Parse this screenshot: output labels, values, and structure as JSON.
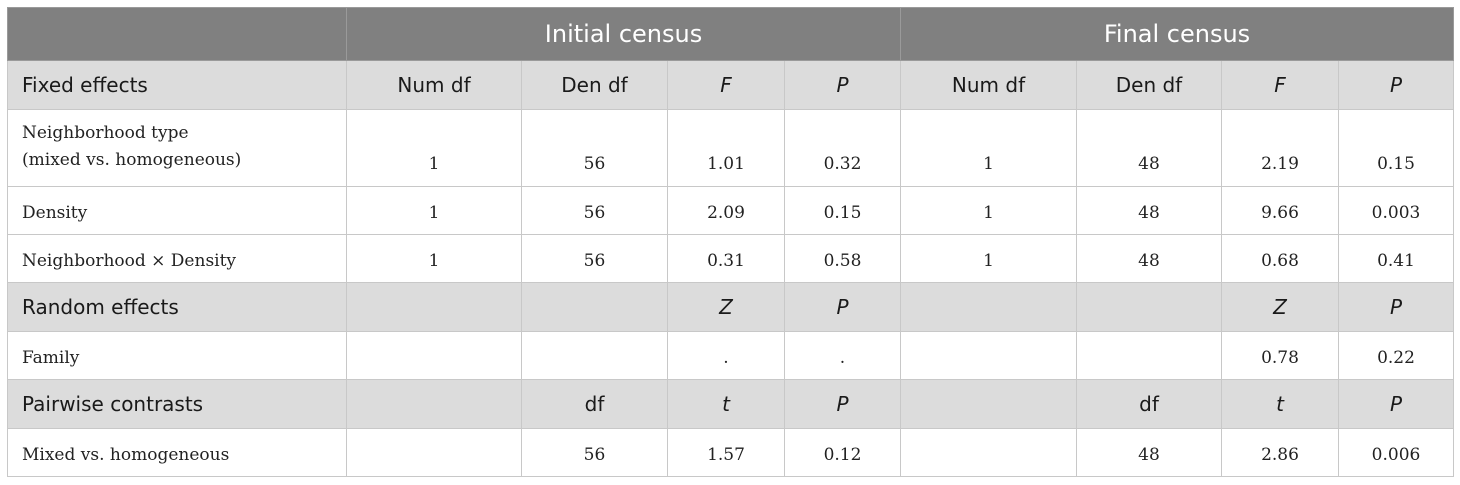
{
  "header": {
    "group1": "Initial census",
    "group2": "Final census"
  },
  "fixed": {
    "label": "Fixed effects",
    "cols": [
      "Num df",
      "Den df",
      "F",
      "P",
      "Num df",
      "Den df",
      "F",
      "P"
    ],
    "rows": [
      {
        "label1": "Neighborhood type",
        "label2": "(mixed vs. homogeneous)",
        "values": [
          "1",
          "56",
          "1.01",
          "0.32",
          "1",
          "48",
          "2.19",
          "0.15"
        ]
      },
      {
        "label1": "Density",
        "values": [
          "1",
          "56",
          "2.09",
          "0.15",
          "1",
          "48",
          "9.66",
          "0.003"
        ]
      },
      {
        "label1": "Neighborhood × Density",
        "values": [
          "1",
          "56",
          "0.31",
          "0.58",
          "1",
          "48",
          "0.68",
          "0.41"
        ]
      }
    ]
  },
  "random": {
    "label": "Random effects",
    "cols": [
      "",
      "",
      "Z",
      "P",
      "",
      "",
      "Z",
      "P"
    ],
    "rows": [
      {
        "label1": "Family",
        "values": [
          "",
          "",
          ".",
          ".",
          "",
          "",
          "0.78",
          "0.22"
        ]
      }
    ]
  },
  "pairwise": {
    "label": "Pairwise contrasts",
    "cols": [
      "",
      "df",
      "t",
      "P",
      "",
      "df",
      "t",
      "P"
    ],
    "rows": [
      {
        "label1": "Mixed vs. homogeneous",
        "values": [
          "",
          "56",
          "1.57",
          "0.12",
          "",
          "48",
          "2.86",
          "0.006"
        ]
      }
    ]
  }
}
